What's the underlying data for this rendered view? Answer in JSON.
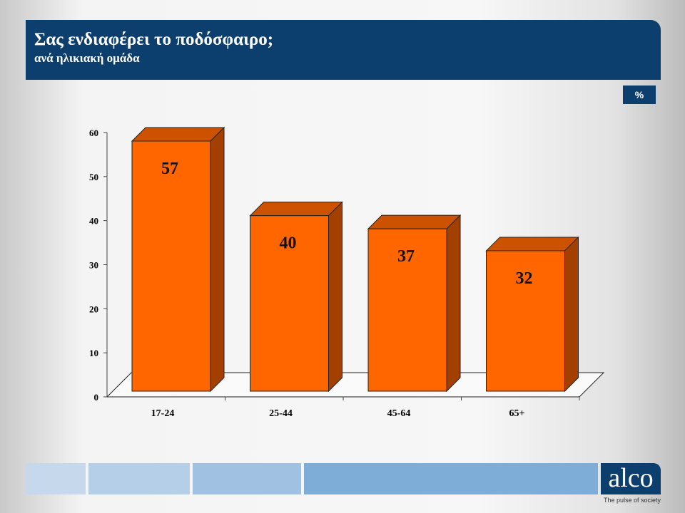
{
  "header": {
    "title": "Σας ενδιαφέρει το ποδόσφαιρο;",
    "subtitle": "ανά ηλικιακή ομάδα"
  },
  "unit_label": "%",
  "logo": {
    "text": "alco",
    "tagline": "The pulse of society"
  },
  "colors": {
    "header": "#0c3e6e",
    "bar_front": "#ff6600",
    "bar_top": "#cc5200",
    "bar_side": "#a34000"
  },
  "chart_data": {
    "type": "bar",
    "categories": [
      "17-24",
      "25-44",
      "45-64",
      "65+"
    ],
    "values": [
      57,
      40,
      37,
      32
    ],
    "ylim": [
      0,
      60
    ],
    "yticks": [
      "0",
      "10",
      "20",
      "30",
      "40",
      "50",
      "60"
    ],
    "three_d": true,
    "data_labels": [
      "57",
      "40",
      "37",
      "32"
    ]
  }
}
